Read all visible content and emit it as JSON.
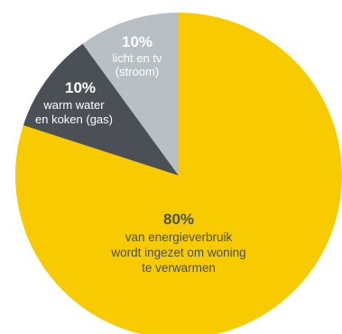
{
  "chart_data": {
    "type": "pie",
    "slices": [
      {
        "value": 80,
        "percent_label": "80%",
        "label_lines": [
          "van energieverbruik",
          "wordt ingezet om woning",
          "te verwarmen"
        ],
        "color": "#F7CB00"
      },
      {
        "value": 10,
        "percent_label": "10%",
        "label_lines": [
          "warm water",
          "en koken (gas)"
        ],
        "color": "#4A5056"
      },
      {
        "value": 10,
        "percent_label": "10%",
        "label_lines": [
          "licht en tv",
          "(stroom)"
        ],
        "color": "#B9C0C5"
      }
    ],
    "start_angle_deg": 0,
    "direction": "clockwise",
    "colors": {
      "dark_text": "#4A5056",
      "light_text": "#ffffff"
    }
  }
}
